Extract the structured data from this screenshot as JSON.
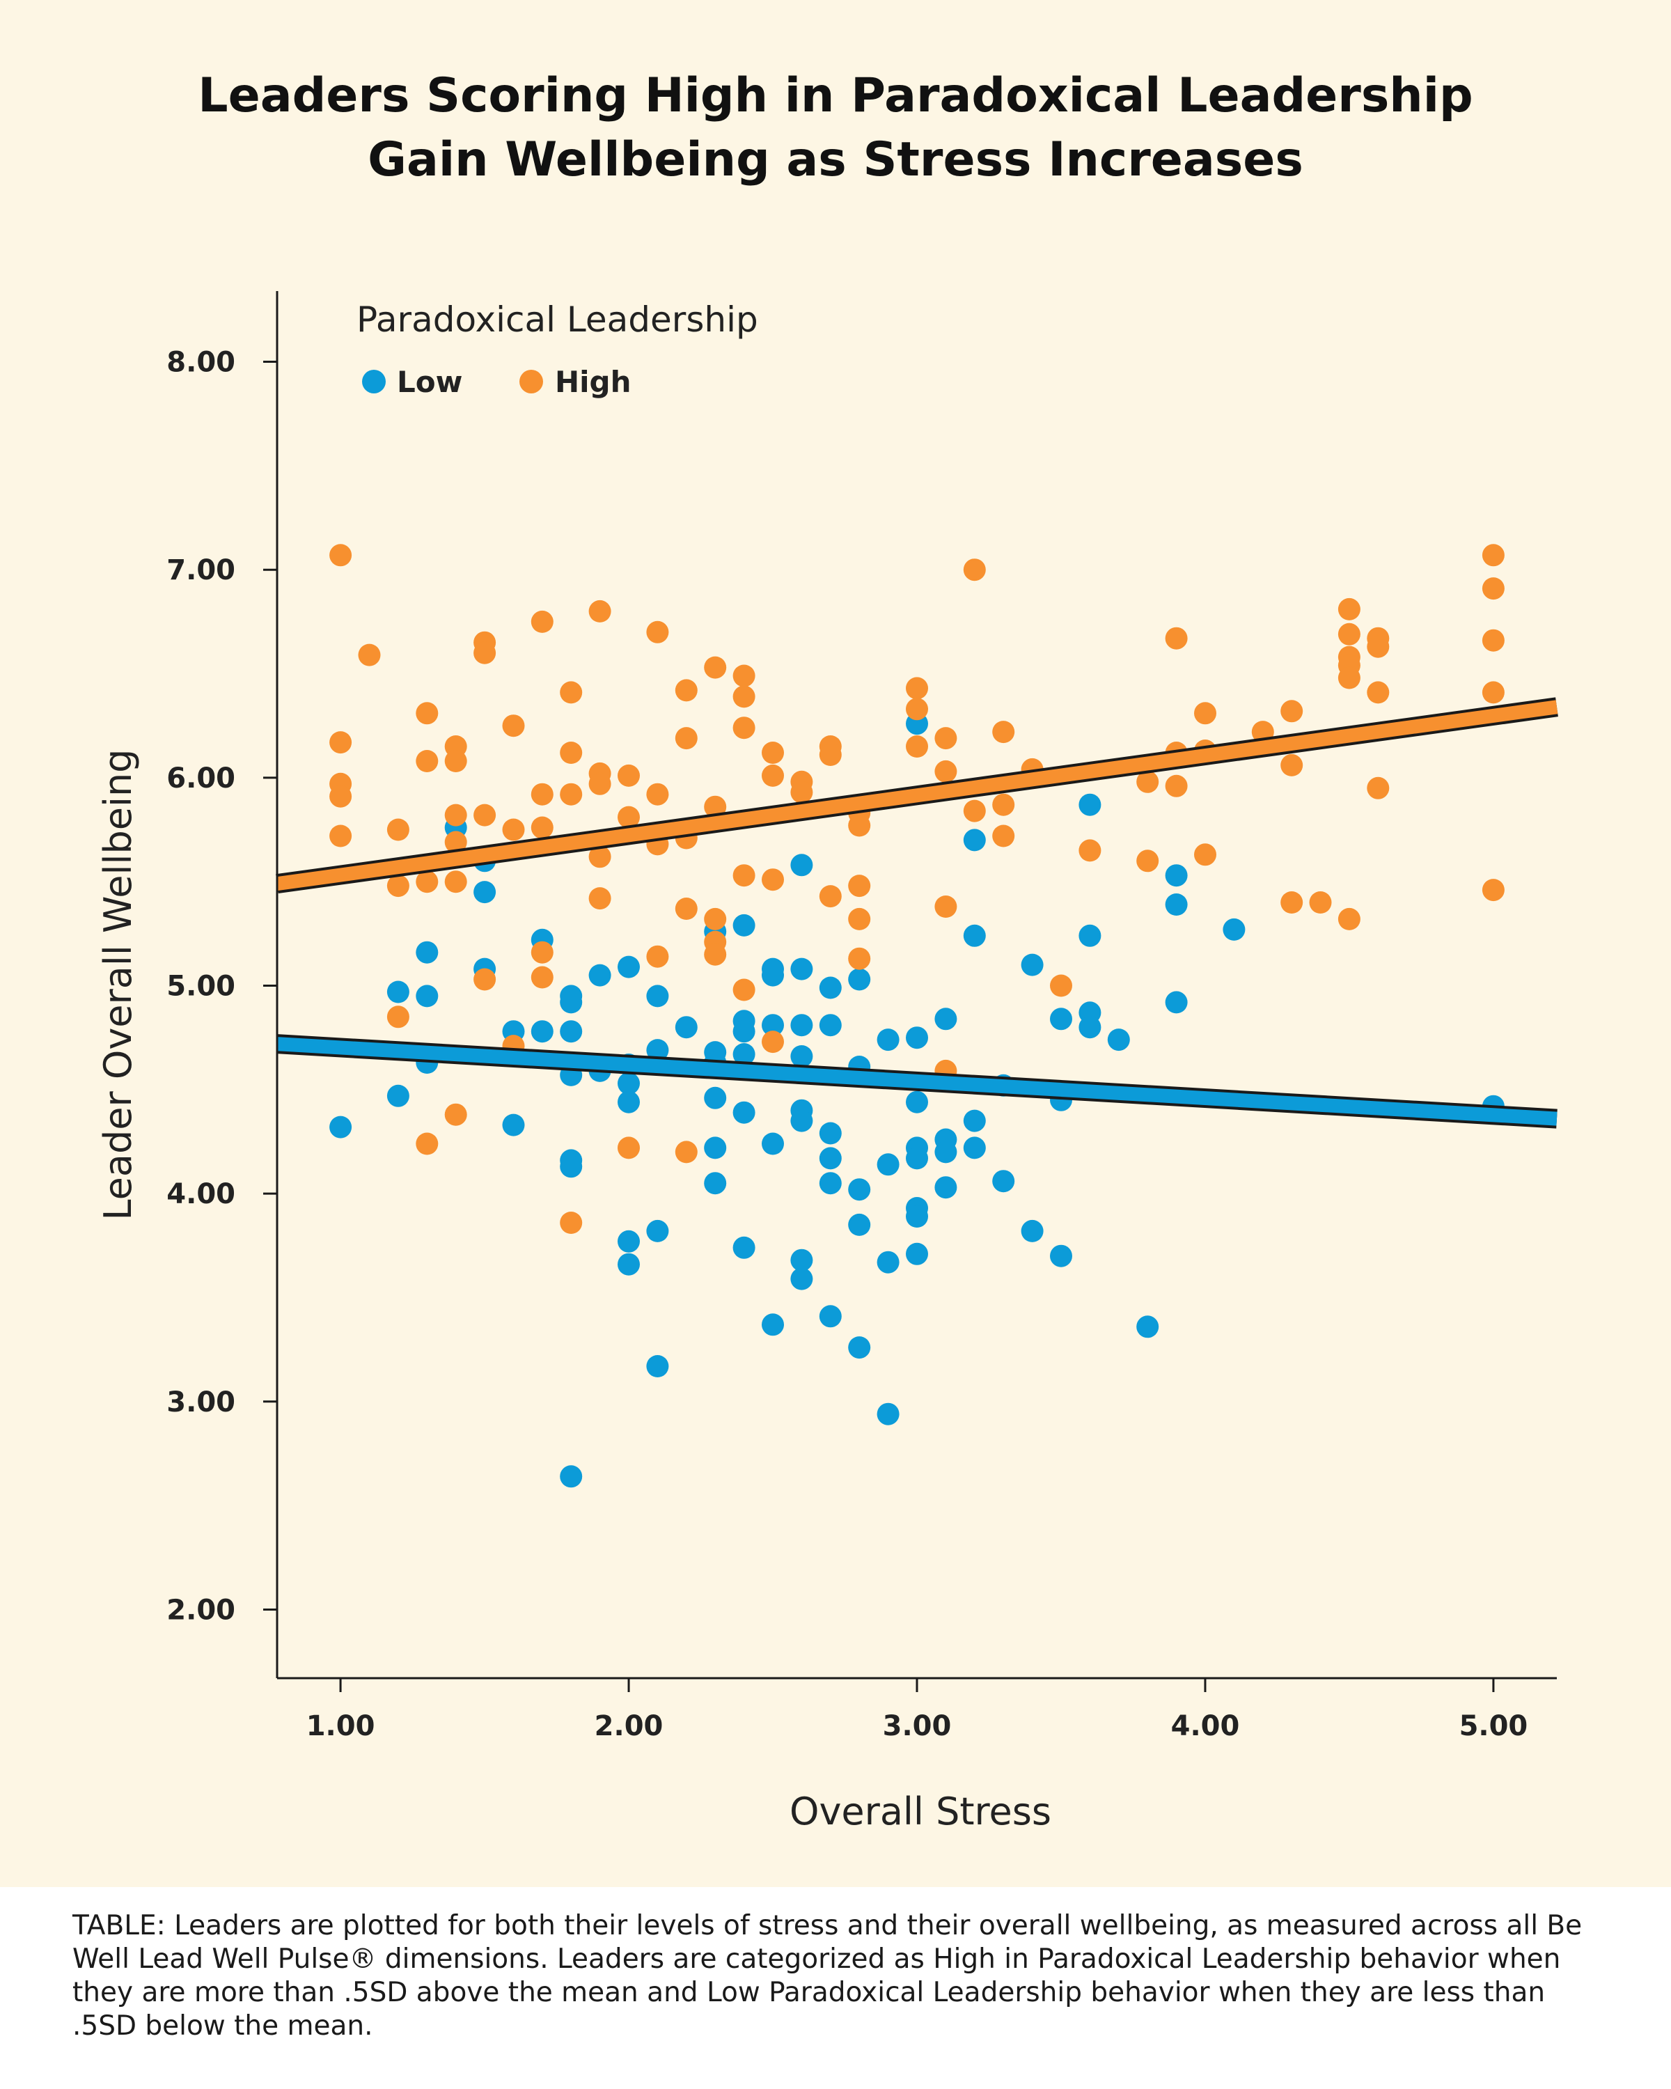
{
  "title_lines": [
    "Leaders Scoring High in Paradoxical Leadership",
    "Gain Wellbeing as Stress Increases"
  ],
  "caption": "TABLE: Leaders are plotted for both their levels of stress and their overall wellbeing, as measured across all Be Well Lead Well Pulse® dimensions. Leaders are categorized as High in Paradoxical Leadership behavior when they are more than .5SD above the mean and Low Paradoxical Leadership behavior when they are less than .5SD below the mean.",
  "chart_data": {
    "type": "scatter",
    "title": "Leaders Scoring High in Paradoxical Leadership Gain Wellbeing as Stress Increases",
    "xlabel": "Overall Stress",
    "ylabel": "Leader Overall Wellbeing",
    "xlim": [
      0.78,
      5.22
    ],
    "ylim": [
      1.67,
      8.34
    ],
    "xticks": [
      "1.00",
      "2.00",
      "3.00",
      "4.00",
      "5.00"
    ],
    "yticks": [
      "2.00",
      "3.00",
      "4.00",
      "5.00",
      "6.00",
      "7.00",
      "8.00"
    ],
    "grid": false,
    "legend": {
      "title": "Paradoxical Leadership",
      "position": "top-left"
    },
    "series": [
      {
        "name": "Low",
        "color": "#0c9bd8",
        "fit_line": {
          "x": [
            0.78,
            5.22
          ],
          "y": [
            4.72,
            4.36
          ]
        },
        "points": [
          [
            1.0,
            4.32
          ],
          [
            1.2,
            4.97
          ],
          [
            1.2,
            4.47
          ],
          [
            1.3,
            5.16
          ],
          [
            1.3,
            4.95
          ],
          [
            1.3,
            4.63
          ],
          [
            1.4,
            5.76
          ],
          [
            1.5,
            5.6
          ],
          [
            1.5,
            5.45
          ],
          [
            1.5,
            5.08
          ],
          [
            1.6,
            4.78
          ],
          [
            1.6,
            4.33
          ],
          [
            1.7,
            5.22
          ],
          [
            1.7,
            4.78
          ],
          [
            1.8,
            4.95
          ],
          [
            1.8,
            4.92
          ],
          [
            1.8,
            4.78
          ],
          [
            1.8,
            4.57
          ],
          [
            1.8,
            4.16
          ],
          [
            1.8,
            4.13
          ],
          [
            1.8,
            2.64
          ],
          [
            1.9,
            5.05
          ],
          [
            1.9,
            4.59
          ],
          [
            2.0,
            5.09
          ],
          [
            2.0,
            4.62
          ],
          [
            2.0,
            4.53
          ],
          [
            2.0,
            4.44
          ],
          [
            2.0,
            3.77
          ],
          [
            2.0,
            3.66
          ],
          [
            2.1,
            4.95
          ],
          [
            2.1,
            4.69
          ],
          [
            2.1,
            3.82
          ],
          [
            2.1,
            3.17
          ],
          [
            2.2,
            4.8
          ],
          [
            2.3,
            5.26
          ],
          [
            2.3,
            4.68
          ],
          [
            2.3,
            4.63
          ],
          [
            2.3,
            4.46
          ],
          [
            2.3,
            4.22
          ],
          [
            2.3,
            4.05
          ],
          [
            2.4,
            5.29
          ],
          [
            2.4,
            4.83
          ],
          [
            2.4,
            4.78
          ],
          [
            2.4,
            4.67
          ],
          [
            2.4,
            4.39
          ],
          [
            2.4,
            3.74
          ],
          [
            2.5,
            5.08
          ],
          [
            2.5,
            5.05
          ],
          [
            2.5,
            4.81
          ],
          [
            2.5,
            4.24
          ],
          [
            2.5,
            3.37
          ],
          [
            2.6,
            5.58
          ],
          [
            2.6,
            5.08
          ],
          [
            2.6,
            4.81
          ],
          [
            2.6,
            4.66
          ],
          [
            2.6,
            4.4
          ],
          [
            2.6,
            4.35
          ],
          [
            2.6,
            3.68
          ],
          [
            2.6,
            3.59
          ],
          [
            2.7,
            4.99
          ],
          [
            2.7,
            4.81
          ],
          [
            2.7,
            4.29
          ],
          [
            2.7,
            4.17
          ],
          [
            2.7,
            4.05
          ],
          [
            2.7,
            3.41
          ],
          [
            2.8,
            5.03
          ],
          [
            2.8,
            4.61
          ],
          [
            2.8,
            4.02
          ],
          [
            2.8,
            3.85
          ],
          [
            2.8,
            3.26
          ],
          [
            2.9,
            4.74
          ],
          [
            2.9,
            4.14
          ],
          [
            2.9,
            3.67
          ],
          [
            2.9,
            2.94
          ],
          [
            3.0,
            6.26
          ],
          [
            3.0,
            4.75
          ],
          [
            3.0,
            4.44
          ],
          [
            3.0,
            4.22
          ],
          [
            3.0,
            4.17
          ],
          [
            3.0,
            3.93
          ],
          [
            3.0,
            3.89
          ],
          [
            3.0,
            3.71
          ],
          [
            3.1,
            4.84
          ],
          [
            3.1,
            4.26
          ],
          [
            3.1,
            4.2
          ],
          [
            3.1,
            4.03
          ],
          [
            3.2,
            5.7
          ],
          [
            3.2,
            5.24
          ],
          [
            3.2,
            4.35
          ],
          [
            3.2,
            4.22
          ],
          [
            3.3,
            4.52
          ],
          [
            3.3,
            4.06
          ],
          [
            3.4,
            5.1
          ],
          [
            3.4,
            3.82
          ],
          [
            3.5,
            4.84
          ],
          [
            3.5,
            4.45
          ],
          [
            3.5,
            3.7
          ],
          [
            3.6,
            5.87
          ],
          [
            3.6,
            5.24
          ],
          [
            3.6,
            4.87
          ],
          [
            3.6,
            4.8
          ],
          [
            3.7,
            4.74
          ],
          [
            3.8,
            3.36
          ],
          [
            3.9,
            5.53
          ],
          [
            3.9,
            5.39
          ],
          [
            3.9,
            4.92
          ],
          [
            4.1,
            5.27
          ],
          [
            5.0,
            4.42
          ]
        ]
      },
      {
        "name": "High",
        "color": "#f7902f",
        "fit_line": {
          "x": [
            0.78,
            5.22
          ],
          "y": [
            5.49,
            6.34
          ]
        },
        "points": [
          [
            1.0,
            7.07
          ],
          [
            1.0,
            6.17
          ],
          [
            1.0,
            5.97
          ],
          [
            1.0,
            5.91
          ],
          [
            1.0,
            5.72
          ],
          [
            1.1,
            6.59
          ],
          [
            1.2,
            5.75
          ],
          [
            1.2,
            5.48
          ],
          [
            1.2,
            4.85
          ],
          [
            1.3,
            6.31
          ],
          [
            1.3,
            6.08
          ],
          [
            1.3,
            5.5
          ],
          [
            1.3,
            4.24
          ],
          [
            1.4,
            6.15
          ],
          [
            1.4,
            6.08
          ],
          [
            1.4,
            5.82
          ],
          [
            1.4,
            5.69
          ],
          [
            1.4,
            5.5
          ],
          [
            1.4,
            4.38
          ],
          [
            1.5,
            6.65
          ],
          [
            1.5,
            6.6
          ],
          [
            1.5,
            5.82
          ],
          [
            1.5,
            5.03
          ],
          [
            1.6,
            6.25
          ],
          [
            1.6,
            5.75
          ],
          [
            1.6,
            4.71
          ],
          [
            1.7,
            6.75
          ],
          [
            1.7,
            5.92
          ],
          [
            1.7,
            5.76
          ],
          [
            1.7,
            5.16
          ],
          [
            1.7,
            5.04
          ],
          [
            1.8,
            6.41
          ],
          [
            1.8,
            6.12
          ],
          [
            1.8,
            5.92
          ],
          [
            1.8,
            3.86
          ],
          [
            1.9,
            6.8
          ],
          [
            1.9,
            6.02
          ],
          [
            1.9,
            5.97
          ],
          [
            1.9,
            5.62
          ],
          [
            1.9,
            5.42
          ],
          [
            2.0,
            6.01
          ],
          [
            2.0,
            5.81
          ],
          [
            2.0,
            4.22
          ],
          [
            2.1,
            6.7
          ],
          [
            2.1,
            5.92
          ],
          [
            2.1,
            5.73
          ],
          [
            2.1,
            5.68
          ],
          [
            2.1,
            5.14
          ],
          [
            2.2,
            6.42
          ],
          [
            2.2,
            6.19
          ],
          [
            2.2,
            5.71
          ],
          [
            2.2,
            5.37
          ],
          [
            2.2,
            4.2
          ],
          [
            2.3,
            6.53
          ],
          [
            2.3,
            5.86
          ],
          [
            2.3,
            5.32
          ],
          [
            2.3,
            5.21
          ],
          [
            2.3,
            5.15
          ],
          [
            2.4,
            6.49
          ],
          [
            2.4,
            6.39
          ],
          [
            2.4,
            6.24
          ],
          [
            2.4,
            5.53
          ],
          [
            2.4,
            4.98
          ],
          [
            2.5,
            6.12
          ],
          [
            2.5,
            6.01
          ],
          [
            2.5,
            5.51
          ],
          [
            2.5,
            4.73
          ],
          [
            2.6,
            5.98
          ],
          [
            2.6,
            5.93
          ],
          [
            2.7,
            6.15
          ],
          [
            2.7,
            6.11
          ],
          [
            2.7,
            5.43
          ],
          [
            2.8,
            5.83
          ],
          [
            2.8,
            5.77
          ],
          [
            2.8,
            5.48
          ],
          [
            2.8,
            5.32
          ],
          [
            2.8,
            5.13
          ],
          [
            3.0,
            6.43
          ],
          [
            3.0,
            6.33
          ],
          [
            3.0,
            6.15
          ],
          [
            3.1,
            6.19
          ],
          [
            3.1,
            6.03
          ],
          [
            3.1,
            5.38
          ],
          [
            3.1,
            4.59
          ],
          [
            3.2,
            7.0
          ],
          [
            3.2,
            5.84
          ],
          [
            3.3,
            6.22
          ],
          [
            3.3,
            5.87
          ],
          [
            3.3,
            5.72
          ],
          [
            3.4,
            6.04
          ],
          [
            3.5,
            5.0
          ],
          [
            3.6,
            5.65
          ],
          [
            3.8,
            5.98
          ],
          [
            3.8,
            5.6
          ],
          [
            3.9,
            6.67
          ],
          [
            3.9,
            6.12
          ],
          [
            3.9,
            5.96
          ],
          [
            4.0,
            6.31
          ],
          [
            4.0,
            6.13
          ],
          [
            4.0,
            5.63
          ],
          [
            4.2,
            6.22
          ],
          [
            4.3,
            6.32
          ],
          [
            4.3,
            6.06
          ],
          [
            4.3,
            5.4
          ],
          [
            4.4,
            5.4
          ],
          [
            4.5,
            6.81
          ],
          [
            4.5,
            6.69
          ],
          [
            4.5,
            6.58
          ],
          [
            4.5,
            6.54
          ],
          [
            4.5,
            6.48
          ],
          [
            4.5,
            5.32
          ],
          [
            4.6,
            6.67
          ],
          [
            4.6,
            6.63
          ],
          [
            4.6,
            6.41
          ],
          [
            4.6,
            5.95
          ],
          [
            5.0,
            7.07
          ],
          [
            5.0,
            6.91
          ],
          [
            5.0,
            6.66
          ],
          [
            5.0,
            6.41
          ],
          [
            5.0,
            5.46
          ]
        ]
      }
    ]
  }
}
